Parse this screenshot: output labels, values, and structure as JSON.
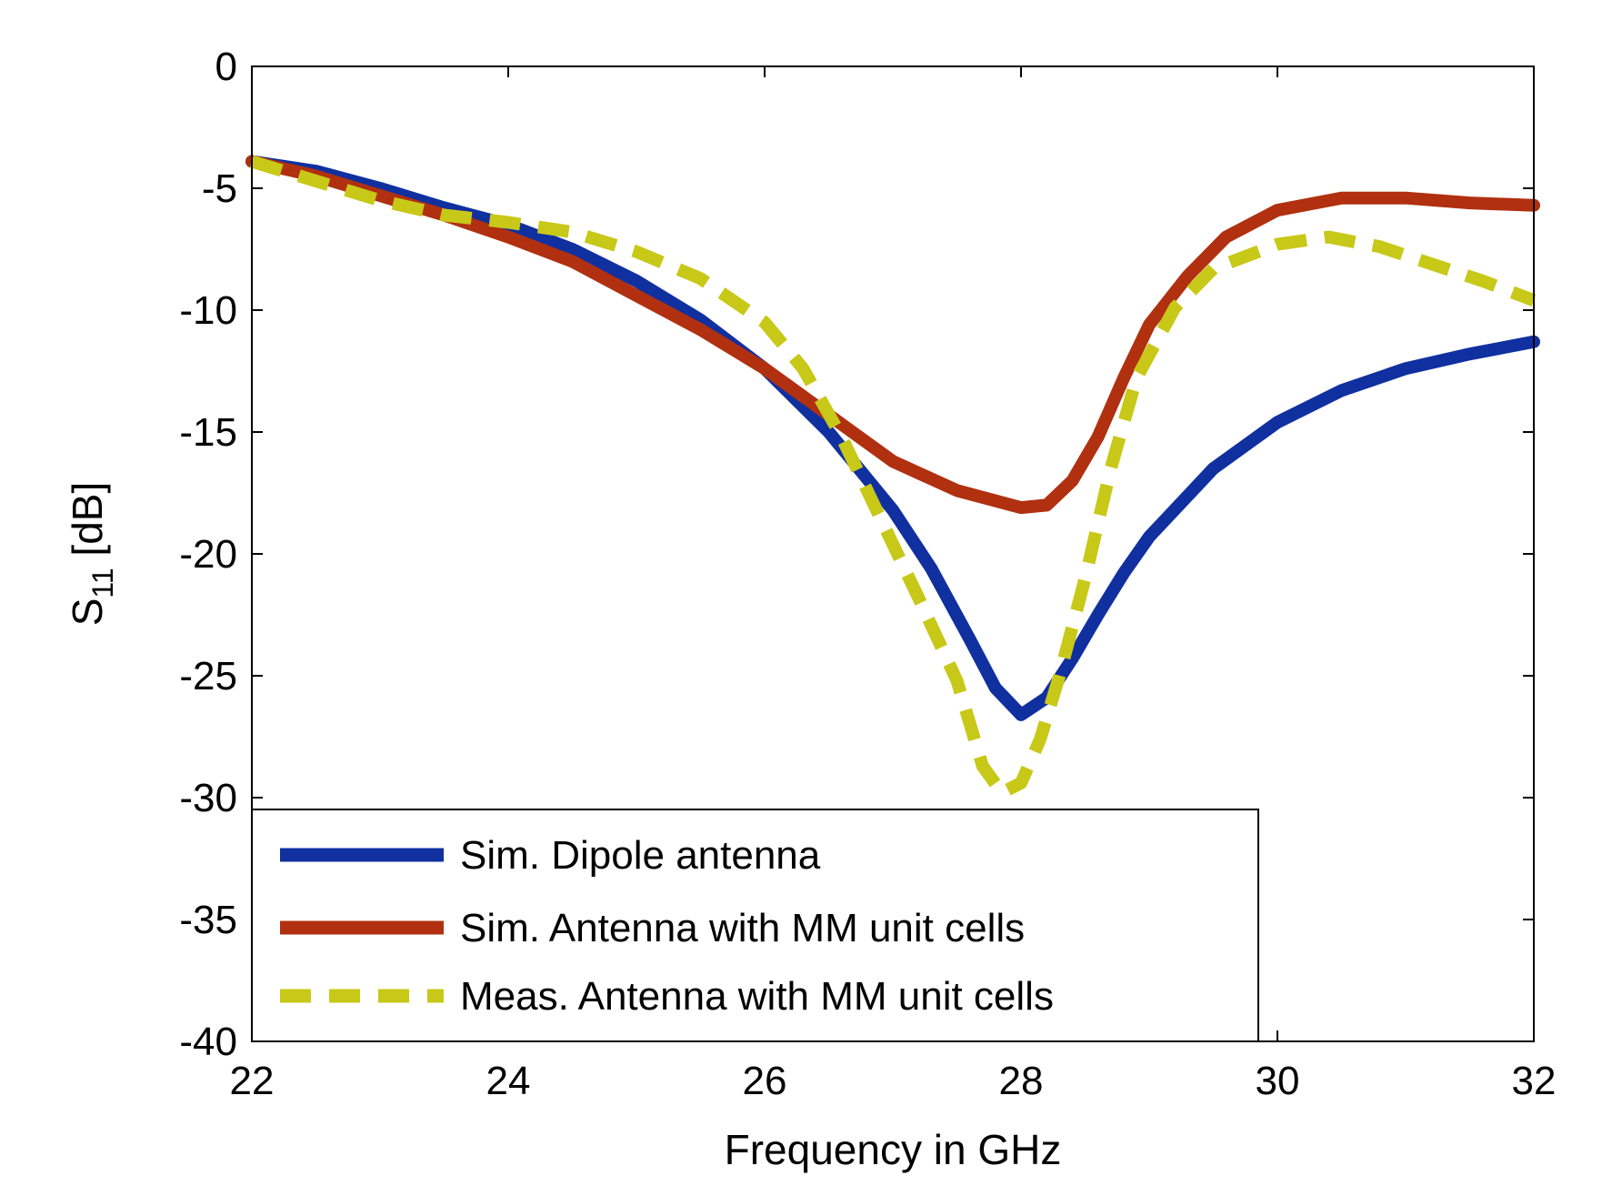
{
  "chart_data": {
    "type": "line",
    "title": "",
    "xlabel": "Frequency in GHz",
    "ylabel": {
      "main": "S",
      "subscript": "11",
      "unit": " [dB]"
    },
    "xlim": [
      22,
      32
    ],
    "ylim": [
      -40,
      0
    ],
    "xticks": [
      22,
      24,
      26,
      28,
      30,
      32
    ],
    "yticks": [
      0,
      -5,
      -10,
      -15,
      -20,
      -25,
      -30,
      -35,
      -40
    ],
    "grid": false,
    "legend_location": "lower-left",
    "series": [
      {
        "name": "Sim. Dipole antenna",
        "color": "#1030a0",
        "style": "solid",
        "x": [
          22,
          22.5,
          23,
          23.5,
          24,
          24.5,
          25,
          25.5,
          26,
          26.5,
          27,
          27.3,
          27.6,
          27.8,
          28,
          28.2,
          28.4,
          28.6,
          28.8,
          29,
          29.5,
          30,
          30.5,
          31,
          31.5,
          32
        ],
        "y": [
          -3.9,
          -4.3,
          -5,
          -5.8,
          -6.5,
          -7.5,
          -8.8,
          -10.4,
          -12.4,
          -15,
          -18.2,
          -20.6,
          -23.5,
          -25.5,
          -26.6,
          -25.9,
          -24.3,
          -22.5,
          -20.8,
          -19.3,
          -16.5,
          -14.6,
          -13.3,
          -12.4,
          -11.8,
          -11.3
        ]
      },
      {
        "name": "Sim. Antenna with MM unit cells",
        "color": "#b03010",
        "style": "solid",
        "x": [
          22,
          22.5,
          23,
          23.5,
          24,
          24.5,
          25,
          25.5,
          26,
          26.5,
          27,
          27.5,
          28,
          28.2,
          28.4,
          28.6,
          28.8,
          29,
          29.3,
          29.6,
          30,
          30.5,
          31,
          31.5,
          32
        ],
        "y": [
          -3.9,
          -4.5,
          -5.3,
          -6.1,
          -7,
          -8,
          -9.4,
          -10.8,
          -12.4,
          -14.3,
          -16.2,
          -17.4,
          -18.1,
          -18,
          -17,
          -15.2,
          -12.8,
          -10.6,
          -8.6,
          -7,
          -5.9,
          -5.4,
          -5.4,
          -5.6,
          -5.7
        ]
      },
      {
        "name": "Meas. Antenna with MM unit cells",
        "color": "#c8c818",
        "style": "dashed",
        "x": [
          22,
          22.5,
          23,
          23.5,
          24,
          24.5,
          25,
          25.5,
          26,
          26.3,
          26.6,
          26.9,
          27.2,
          27.5,
          27.7,
          27.85,
          28,
          28.15,
          28.3,
          28.5,
          28.7,
          28.9,
          29.2,
          29.5,
          30,
          30.4,
          30.8,
          31.2,
          31.6,
          32
        ],
        "y": [
          -3.9,
          -4.7,
          -5.5,
          -6.1,
          -6.4,
          -6.8,
          -7.6,
          -8.7,
          -10.5,
          -12.4,
          -15.2,
          -18.5,
          -21.8,
          -25.2,
          -28.7,
          -29.8,
          -29.4,
          -27.6,
          -25,
          -21,
          -16.5,
          -12.8,
          -9.9,
          -8.3,
          -7.3,
          -7,
          -7.4,
          -8.1,
          -8.8,
          -9.6
        ]
      }
    ]
  }
}
